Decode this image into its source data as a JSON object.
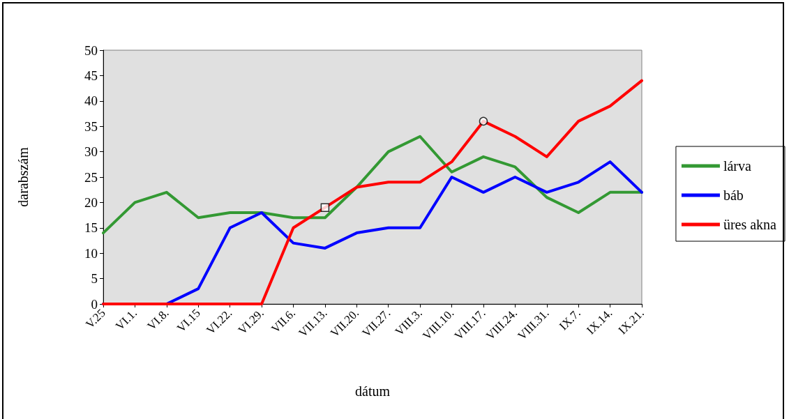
{
  "chart_data": {
    "type": "line",
    "xlabel": "dátum",
    "ylabel": "darabszám",
    "categories": [
      "V.25",
      "VI.1.",
      "VI.8.",
      "VI.15",
      "VI.22.",
      "VI.29.",
      "VII.6.",
      "VII.13.",
      "VII.20.",
      "VII.27.",
      "VIII.3.",
      "VIII.10.",
      "VIII.17.",
      "VIII.24.",
      "VIII.31.",
      "IX.7.",
      "IX.14.",
      "IX.21."
    ],
    "series": [
      {
        "name": "lárva",
        "color": "#339933",
        "values": [
          14,
          20,
          22,
          17,
          18,
          18,
          17,
          17,
          23,
          30,
          33,
          26,
          29,
          27,
          21,
          18,
          22,
          22
        ]
      },
      {
        "name": "báb",
        "color": "#0000ff",
        "values": [
          0,
          0,
          0,
          3,
          15,
          18,
          12,
          11,
          14,
          15,
          15,
          25,
          22,
          25,
          22,
          24,
          28,
          22
        ]
      },
      {
        "name": "üres akna",
        "color": "#ff0000",
        "values": [
          0,
          0,
          0,
          0,
          0,
          0,
          15,
          19,
          23,
          24,
          24,
          28,
          36,
          33,
          29,
          36,
          39,
          44
        ]
      },
      {
        "type": "scatter",
        "color": "#000000",
        "marker": "square",
        "x": [
          "VII.13."
        ],
        "values": [
          19
        ]
      },
      {
        "type": "scatter",
        "color": "#000000",
        "marker": "circle",
        "x": [
          "VIII.17."
        ],
        "values": [
          36
        ]
      }
    ],
    "ylim": [
      0,
      50
    ],
    "yticks": [
      0,
      5,
      10,
      15,
      20,
      25,
      30,
      35,
      40,
      45,
      50
    ],
    "grid": false,
    "legend": "right",
    "marker": "none",
    "line_style": "solid"
  }
}
